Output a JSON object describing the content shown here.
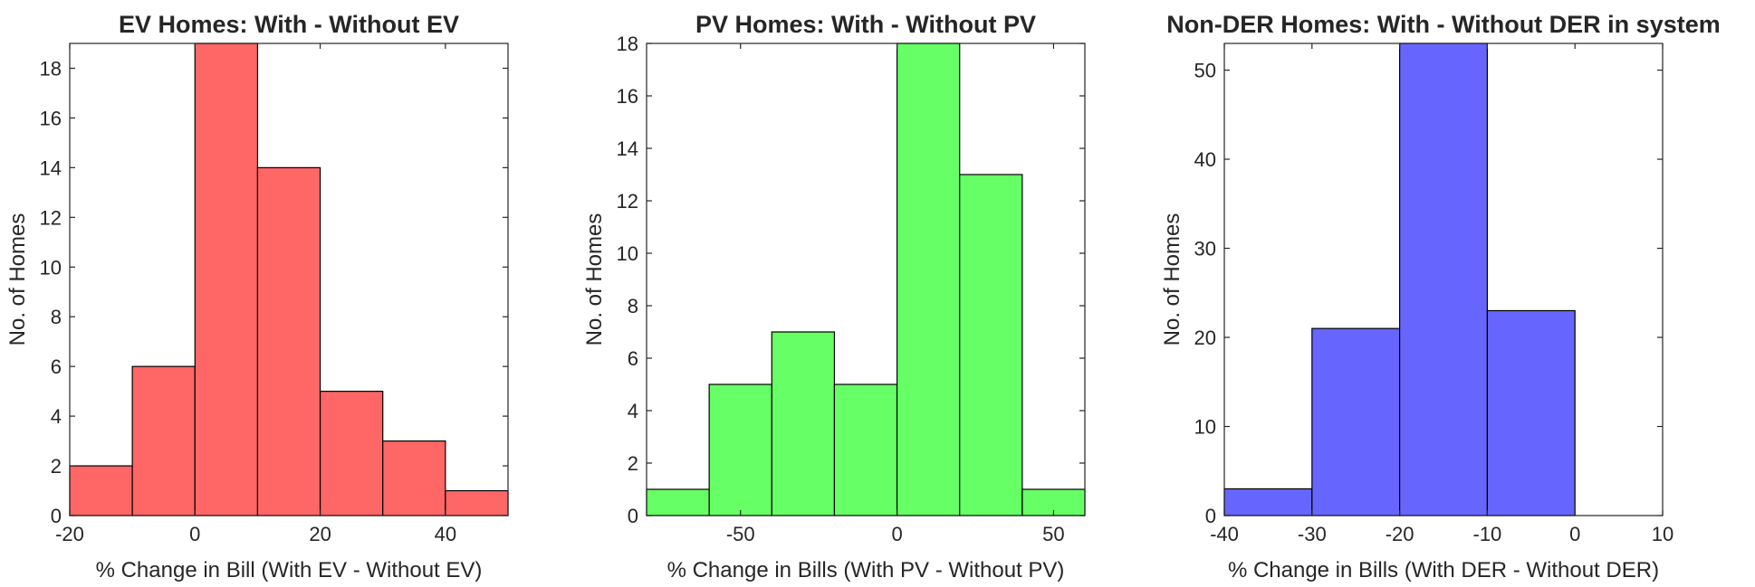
{
  "chart_data": [
    {
      "type": "bar",
      "title": "EV Homes: With - Without EV",
      "xlabel": "% Change in Bill (With EV - Without EV)",
      "ylabel": "No. of Homes",
      "bin_edges": [
        -20,
        -10,
        0,
        10,
        20,
        30,
        40,
        50
      ],
      "values": [
        2,
        6,
        19,
        14,
        5,
        3,
        1
      ],
      "xlim": [
        -20,
        50
      ],
      "ylim": [
        0,
        19
      ],
      "xticks": [
        -20,
        0,
        20,
        40
      ],
      "yticks": [
        0,
        2,
        4,
        6,
        8,
        10,
        12,
        14,
        16,
        18
      ],
      "color": "#ff6666"
    },
    {
      "type": "bar",
      "title": "PV Homes: With - Without PV",
      "xlabel": "% Change in Bills (With PV - Without PV)",
      "ylabel": "No. of Homes",
      "bin_edges": [
        -80,
        -60,
        -40,
        -20,
        0,
        20,
        40,
        60
      ],
      "values": [
        1,
        5,
        7,
        5,
        18,
        13,
        1
      ],
      "xlim": [
        -80,
        60
      ],
      "ylim": [
        0,
        18
      ],
      "xticks": [
        -50,
        0,
        50
      ],
      "yticks": [
        0,
        2,
        4,
        6,
        8,
        10,
        12,
        14,
        16,
        18
      ],
      "color": "#66ff66"
    },
    {
      "type": "bar",
      "title": "Non-DER Homes: With - Without DER in system",
      "xlabel": "% Change in Bills (With DER - Without DER)",
      "ylabel": "No. of Homes",
      "bin_edges": [
        -40,
        -30,
        -20,
        -10,
        0
      ],
      "values": [
        3,
        21,
        53,
        23
      ],
      "xlim": [
        -40,
        10
      ],
      "ylim": [
        0,
        53
      ],
      "xticks": [
        -40,
        -30,
        -20,
        -10,
        0,
        10
      ],
      "yticks": [
        0,
        10,
        20,
        30,
        40,
        50
      ],
      "color": "#6666ff"
    }
  ]
}
